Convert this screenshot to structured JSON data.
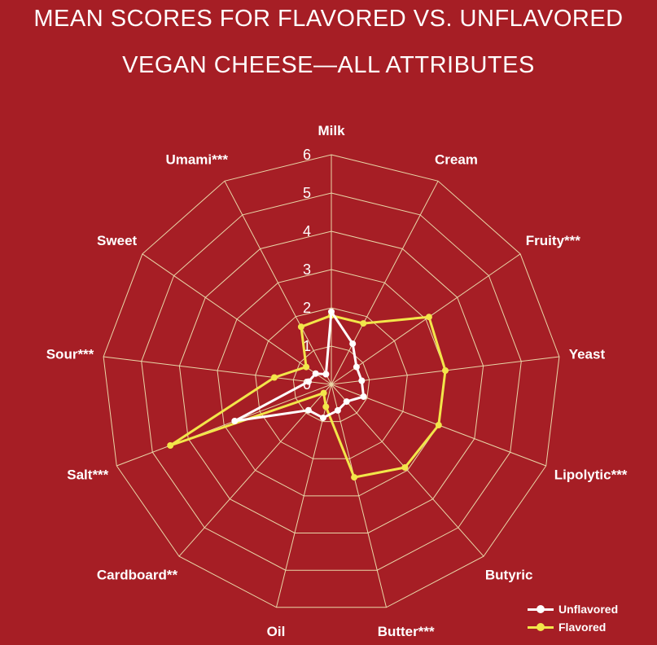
{
  "chart_data": {
    "type": "radar",
    "title": "MEAN SCORES FOR FLAVORED VS. UNFLAVORED",
    "subtitle": "VEGAN CHEESE—ALL ATTRIBUTES",
    "categories": [
      "Milk",
      "Cream",
      "Fruity***",
      "Yeast",
      "Lipolytic***",
      "Butyric",
      "Butter***",
      "Oil",
      "Cardboard**",
      "Salt***",
      "Sour***",
      "Sweet",
      "Umami***"
    ],
    "rlim": [
      0,
      6
    ],
    "rticks": [
      "0",
      "1",
      "2",
      "3",
      "4",
      "5",
      "6"
    ],
    "legend_position": "bottom-right",
    "series": [
      {
        "name": "Unflavored",
        "color": "#ffffff",
        "values": [
          1.9,
          1.2,
          0.8,
          0.8,
          0.9,
          0.6,
          0.7,
          0.9,
          0.9,
          2.7,
          0.6,
          0.5,
          0.3
        ]
      },
      {
        "name": "Flavored",
        "color": "#f2e64a",
        "values": [
          1.8,
          1.8,
          3.1,
          3.0,
          3.0,
          2.9,
          2.5,
          0.6,
          0.3,
          4.5,
          1.5,
          0.8,
          1.7
        ]
      }
    ]
  }
}
